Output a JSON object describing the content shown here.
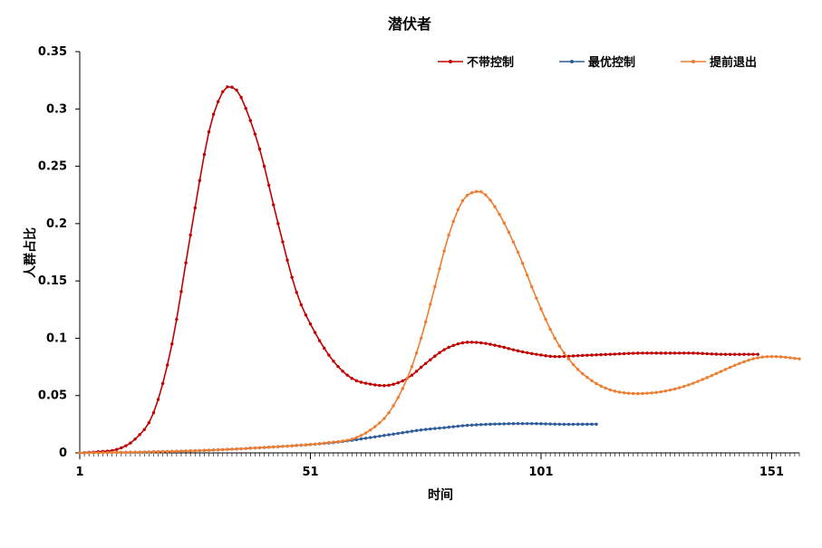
{
  "chart_data": {
    "type": "line",
    "title": "潜伏者",
    "xlabel": "时间",
    "ylabel": "人群占比",
    "xlim": [
      1,
      157
    ],
    "ylim": [
      0,
      0.35
    ],
    "x_ticks": [
      1,
      51,
      101,
      151
    ],
    "x_tick_labels": [
      "1",
      "51",
      "101",
      "151"
    ],
    "y_ticks": [
      0,
      0.05,
      0.1,
      0.15,
      0.2,
      0.25,
      0.3,
      0.35
    ],
    "y_tick_labels": [
      "0",
      "0.05",
      "0.1",
      "0.15",
      "0.2",
      "0.25",
      "0.3",
      "0.35"
    ],
    "grid": false,
    "legend_position": "top-right",
    "series": [
      {
        "name": "不带控制",
        "color": "#C00000",
        "points": [
          [
            1,
            0.0
          ],
          [
            5,
            0.001
          ],
          [
            9,
            0.003
          ],
          [
            13,
            0.012
          ],
          [
            17,
            0.035
          ],
          [
            21,
            0.095
          ],
          [
            25,
            0.19
          ],
          [
            29,
            0.28
          ],
          [
            32,
            0.315
          ],
          [
            34,
            0.319
          ],
          [
            36,
            0.31
          ],
          [
            40,
            0.265
          ],
          [
            44,
            0.2
          ],
          [
            48,
            0.14
          ],
          [
            52,
            0.105
          ],
          [
            56,
            0.08
          ],
          [
            60,
            0.065
          ],
          [
            64,
            0.06
          ],
          [
            68,
            0.059
          ],
          [
            72,
            0.065
          ],
          [
            76,
            0.078
          ],
          [
            80,
            0.09
          ],
          [
            84,
            0.096
          ],
          [
            88,
            0.096
          ],
          [
            92,
            0.093
          ],
          [
            96,
            0.089
          ],
          [
            100,
            0.086
          ],
          [
            104,
            0.084
          ],
          [
            110,
            0.085
          ],
          [
            116,
            0.086
          ],
          [
            122,
            0.087
          ],
          [
            128,
            0.087
          ],
          [
            134,
            0.087
          ],
          [
            140,
            0.086
          ],
          [
            148,
            0.086
          ]
        ]
      },
      {
        "name": "最优控制",
        "color": "#2E5B9A",
        "points": [
          [
            1,
            0.0
          ],
          [
            10,
            0.0004
          ],
          [
            20,
            0.0012
          ],
          [
            30,
            0.0025
          ],
          [
            40,
            0.0045
          ],
          [
            50,
            0.007
          ],
          [
            56,
            0.009
          ],
          [
            60,
            0.011
          ],
          [
            65,
            0.014
          ],
          [
            70,
            0.017
          ],
          [
            75,
            0.02
          ],
          [
            80,
            0.022
          ],
          [
            85,
            0.024
          ],
          [
            90,
            0.025
          ],
          [
            95,
            0.0255
          ],
          [
            100,
            0.0255
          ],
          [
            105,
            0.025
          ],
          [
            110,
            0.025
          ],
          [
            113,
            0.025
          ]
        ]
      },
      {
        "name": "提前退出",
        "color": "#ED7D31",
        "points": [
          [
            1,
            0.0
          ],
          [
            10,
            0.0004
          ],
          [
            20,
            0.0012
          ],
          [
            30,
            0.0025
          ],
          [
            40,
            0.0045
          ],
          [
            50,
            0.007
          ],
          [
            55,
            0.009
          ],
          [
            60,
            0.012
          ],
          [
            64,
            0.02
          ],
          [
            68,
            0.035
          ],
          [
            72,
            0.065
          ],
          [
            75,
            0.1
          ],
          [
            78,
            0.145
          ],
          [
            81,
            0.19
          ],
          [
            84,
            0.22
          ],
          [
            87,
            0.228
          ],
          [
            89,
            0.225
          ],
          [
            92,
            0.208
          ],
          [
            96,
            0.175
          ],
          [
            100,
            0.135
          ],
          [
            104,
            0.1
          ],
          [
            108,
            0.077
          ],
          [
            112,
            0.063
          ],
          [
            116,
            0.055
          ],
          [
            120,
            0.052
          ],
          [
            124,
            0.052
          ],
          [
            128,
            0.054
          ],
          [
            132,
            0.058
          ],
          [
            136,
            0.064
          ],
          [
            140,
            0.071
          ],
          [
            144,
            0.078
          ],
          [
            148,
            0.083
          ],
          [
            152,
            0.084
          ],
          [
            157,
            0.082
          ]
        ]
      }
    ]
  }
}
